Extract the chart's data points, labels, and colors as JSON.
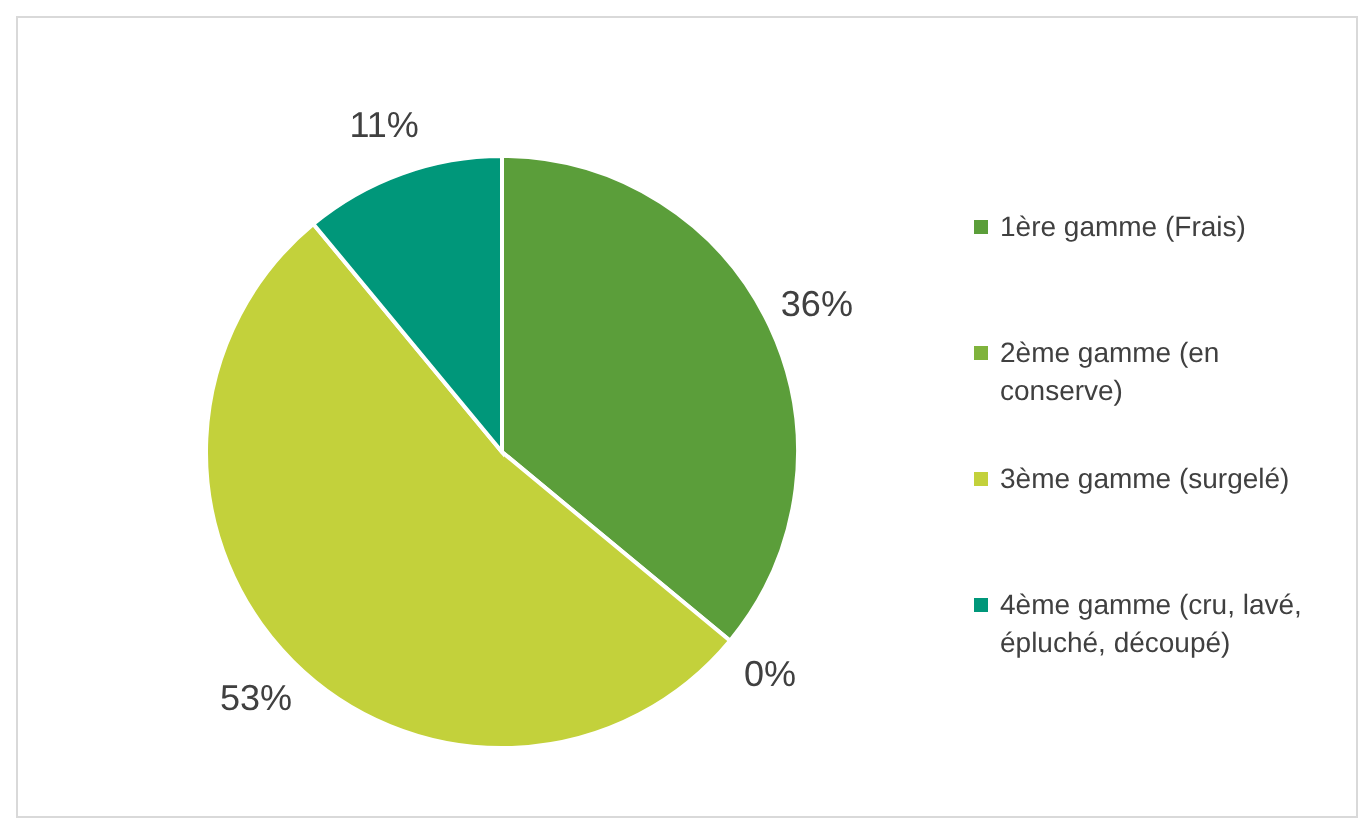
{
  "chart_data": {
    "type": "pie",
    "categories": [
      "1ère gamme (Frais)",
      "2ème gamme (en conserve)",
      "3ème gamme (surgelé)",
      "4ème gamme (cru, lavé, épluché, découpé)"
    ],
    "values": [
      36,
      0,
      53,
      11
    ],
    "colors": [
      "#5b9e3a",
      "#7fb33c",
      "#c3d13b",
      "#00977a"
    ],
    "value_labels": [
      "36%",
      "0%",
      "53%",
      "11%"
    ],
    "legend": "right"
  }
}
